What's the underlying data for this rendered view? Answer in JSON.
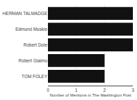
{
  "chart_data": {
    "type": "bar",
    "orientation": "horizontal",
    "categories": [
      "TOM FOLEY",
      "Robert Giaimo",
      "Robert Dole",
      "Edmund Muskie",
      "HERMAN TALMADGE"
    ],
    "values": [
      2,
      2,
      3,
      3,
      3
    ],
    "color": "#111111",
    "xlabel": "Number of Mentions in The Washington Post",
    "xlim": [
      0,
      3
    ],
    "xticks": [
      0,
      1,
      2,
      3
    ],
    "grid": true
  }
}
